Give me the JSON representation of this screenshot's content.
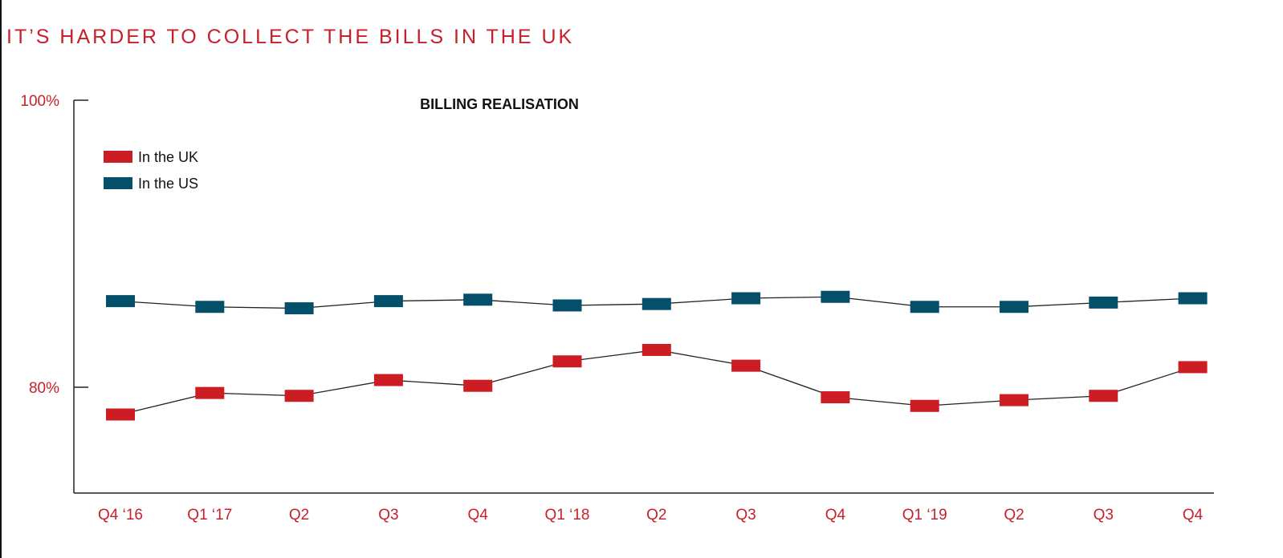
{
  "page_title": "IT’S HARDER TO COLLECT THE BILLS IN THE UK",
  "chart_data": {
    "type": "line",
    "title": "BILLING REALISATION",
    "categories": [
      "Q4 ‘16",
      "Q1 ‘17",
      "Q2",
      "Q3",
      "Q4",
      "Q1 ‘18",
      "Q2",
      "Q3",
      "Q4",
      "Q1 ‘19",
      "Q2",
      "Q3",
      "Q4"
    ],
    "y_ticks": [
      {
        "value": 100,
        "label": "100%"
      },
      {
        "value": 80,
        "label": "80%"
      }
    ],
    "ylim": [
      72.7,
      100
    ],
    "legend_position": "top-left",
    "grid": false,
    "series": [
      {
        "name": "In the UK",
        "color": "#cc1c24",
        "values": [
          78.1,
          79.6,
          79.4,
          80.5,
          80.1,
          81.8,
          82.6,
          81.5,
          79.3,
          78.7,
          79.1,
          79.4,
          81.4
        ]
      },
      {
        "name": "In the US",
        "color": "#04506a",
        "values": [
          86.0,
          85.6,
          85.5,
          86.0,
          86.1,
          85.7,
          85.8,
          86.2,
          86.3,
          85.6,
          85.6,
          85.9,
          86.2
        ]
      }
    ]
  }
}
